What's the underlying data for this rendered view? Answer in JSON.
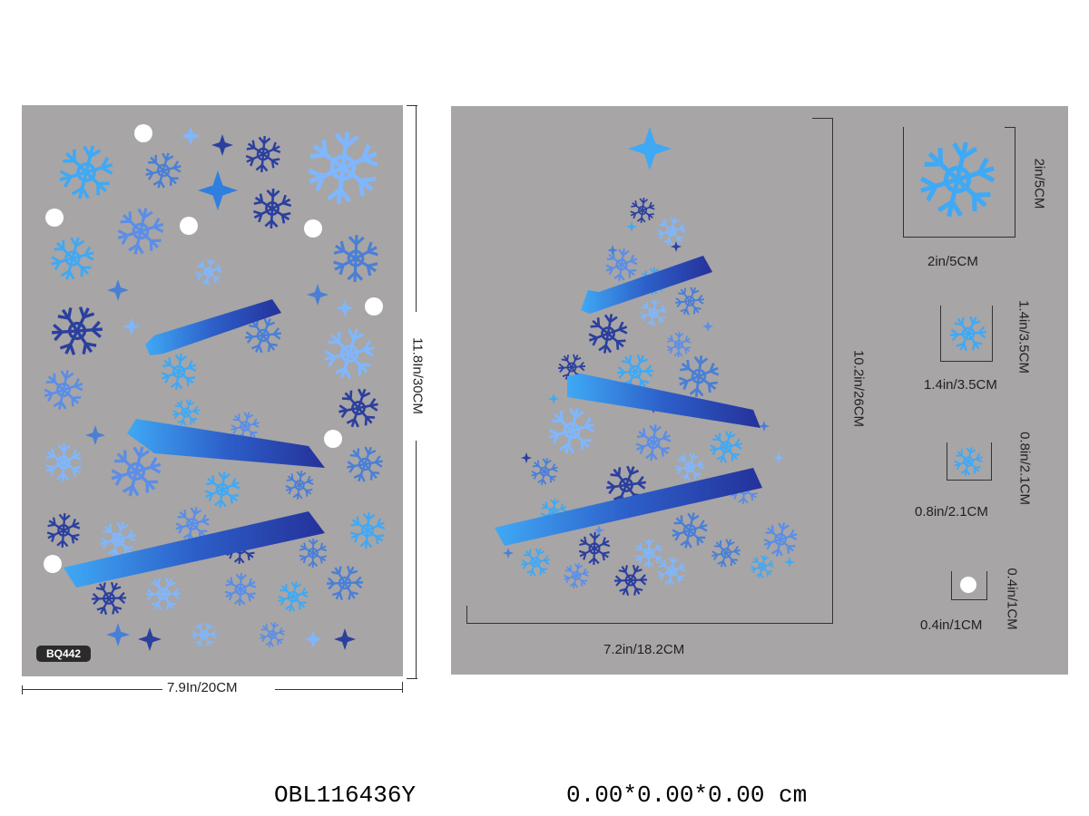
{
  "left_sheet": {
    "badge": "BQ442",
    "width_label": "7.9In/20CM",
    "height_label": "11.8In/30CM"
  },
  "right_sheet": {
    "tree_width_label": "7.2in/18.2CM",
    "tree_height_label": "10.2in/26CM",
    "sizes": [
      {
        "h": "2in/5CM",
        "v": "2in/5CM"
      },
      {
        "h": "1.4in/3.5CM",
        "v": "1.4in/3.5CM"
      },
      {
        "h": "0.8in/2.1CM",
        "v": "0.8in/2.1CM"
      },
      {
        "h": "0.4in/1CM",
        "v": "0.4in/1CM"
      }
    ]
  },
  "footer": {
    "product_code": "OBL116436Y",
    "dimensions": "0.00*0.00*0.00 cm"
  },
  "colors": {
    "sheet": "#a7a5a6",
    "light_blue": "#3fa9f5",
    "mid_blue": "#4a7fd6",
    "dark_blue": "#2b3f9e"
  }
}
